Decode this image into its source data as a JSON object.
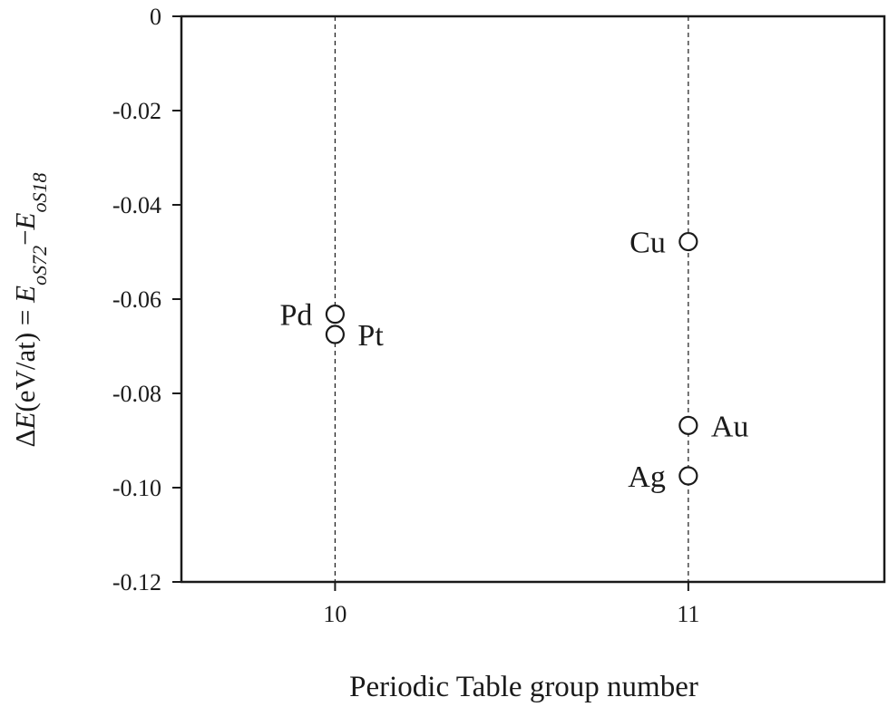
{
  "chart_data": {
    "type": "scatter",
    "xlabel": "Periodic Table group number",
    "ylabel": {
      "prefix": "Δ",
      "symbol": "E",
      "units": "(eV/at) = ",
      "term1_symbol": "E",
      "term1_sub": "oS72",
      "minus": "−",
      "term2_symbol": "E",
      "term2_sub": "oS18"
    },
    "xlim": [
      9.565,
      11.555
    ],
    "ylim": [
      -0.12,
      0
    ],
    "xticks": [
      {
        "value": 10,
        "label": "10"
      },
      {
        "value": 11,
        "label": "11"
      }
    ],
    "yticks": [
      {
        "value": 0,
        "label": "0"
      },
      {
        "value": -0.02,
        "label": "-0.02"
      },
      {
        "value": -0.04,
        "label": "-0.04"
      },
      {
        "value": -0.06,
        "label": "-0.06"
      },
      {
        "value": -0.08,
        "label": "-0.08"
      },
      {
        "value": -0.1,
        "label": "-0.10"
      },
      {
        "value": -0.12,
        "label": "-0.12"
      }
    ],
    "vlines": [
      10,
      11
    ],
    "points": [
      {
        "label": "Pd",
        "x": 10,
        "y": -0.0632,
        "label_side": "left"
      },
      {
        "label": "Pt",
        "x": 10,
        "y": -0.0675,
        "label_side": "right"
      },
      {
        "label": "Cu",
        "x": 11,
        "y": -0.0478,
        "label_side": "left"
      },
      {
        "label": "Au",
        "x": 11,
        "y": -0.0868,
        "label_side": "right"
      },
      {
        "label": "Ag",
        "x": 11,
        "y": -0.0975,
        "label_side": "left"
      }
    ],
    "marker": "open-circle",
    "grid": false
  }
}
